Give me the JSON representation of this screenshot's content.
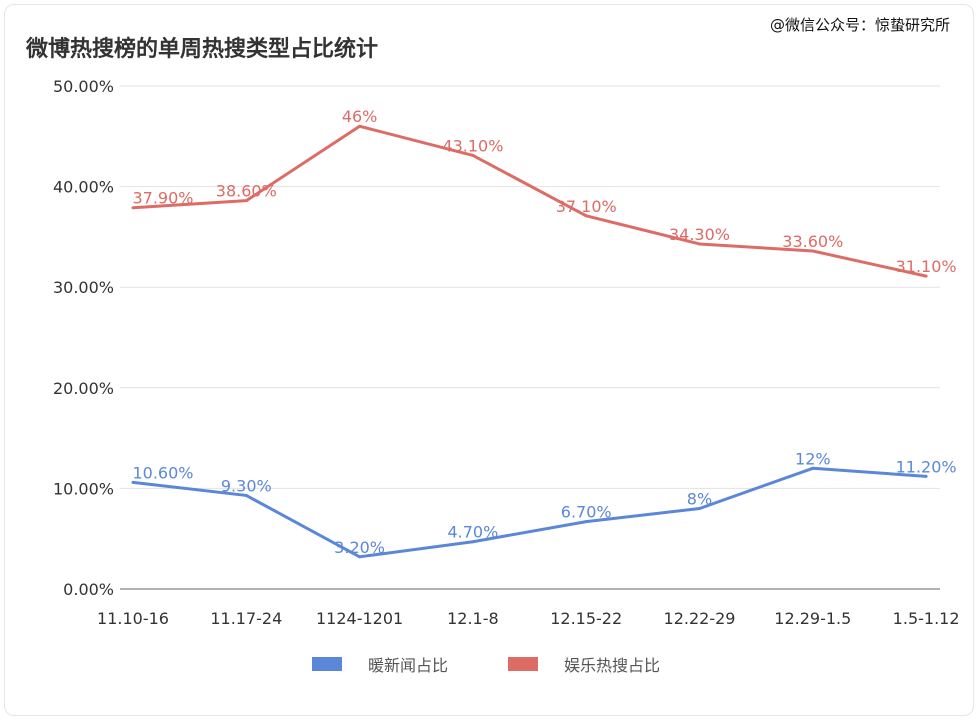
{
  "title": "微博热搜榜的单周热搜类型占比统计",
  "watermark": "@微信公众号：惊蛰研究所",
  "chart_data": {
    "type": "line",
    "title": "微博热搜榜的单周热搜类型占比统计",
    "categories": [
      "11.10-16",
      "11.17-24",
      "1124-1201",
      "12.1-8",
      "12.15-22",
      "12.22-29",
      "12.29-1.5",
      "1.5-1.12"
    ],
    "ylim": [
      0,
      50
    ],
    "yticks": [
      "0.00%",
      "10.00%",
      "20.00%",
      "30.00%",
      "40.00%",
      "50.00%"
    ],
    "grid": true,
    "legend_placement": "bottom",
    "series": [
      {
        "name": "暖新闻占比",
        "color": "#5b87d8",
        "values": [
          10.6,
          9.3,
          3.2,
          4.7,
          6.7,
          8,
          12,
          11.2
        ],
        "labels": [
          "10.60%",
          "9.30%",
          "3.20%",
          "4.70%",
          "6.70%",
          "8%",
          "12%",
          "11.20%"
        ]
      },
      {
        "name": "娱乐热搜占比",
        "color": "#dd6b66",
        "values": [
          37.9,
          38.6,
          46,
          43.1,
          37.1,
          34.3,
          33.6,
          31.1
        ],
        "labels": [
          "37.90%",
          "38.60%",
          "46%",
          "43.10%",
          "37.10%",
          "34.30%",
          "33.60%",
          "31.10%"
        ]
      }
    ]
  }
}
